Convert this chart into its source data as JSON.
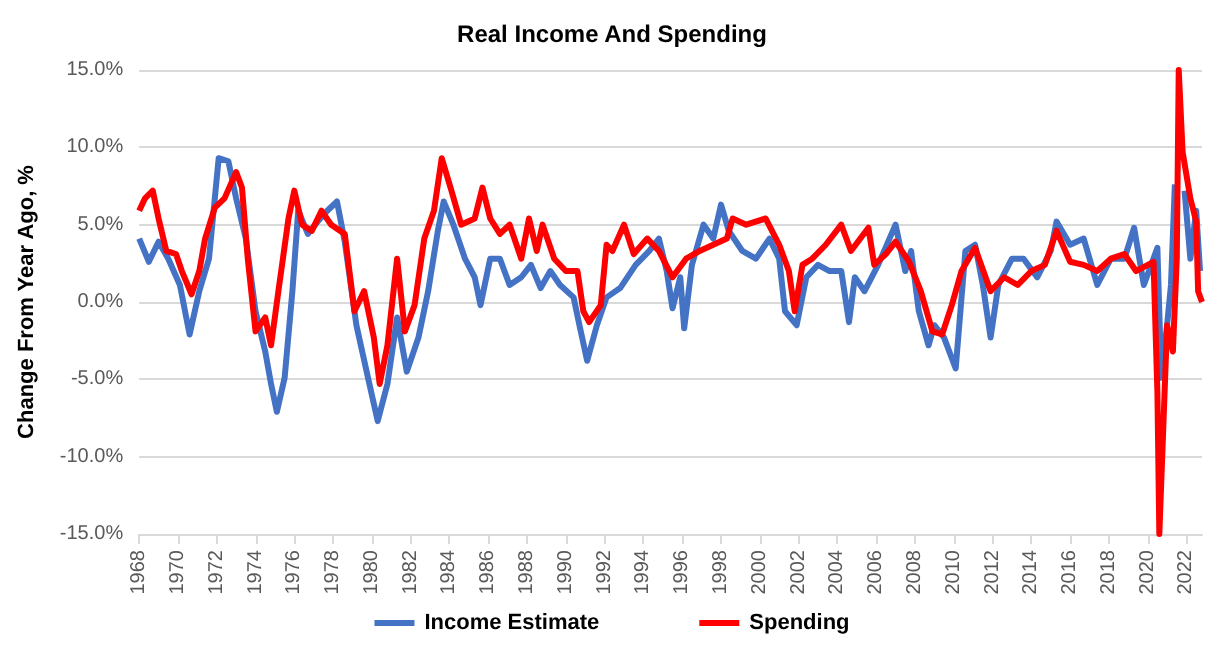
{
  "chart_data": {
    "type": "line",
    "title": "Real Income And Spending",
    "ylabel": "Change From Year Ago, %",
    "xlim": [
      1968,
      2022.8
    ],
    "xticks": [
      1968,
      1970,
      1972,
      1974,
      1976,
      1978,
      1980,
      1982,
      1984,
      1986,
      1988,
      1990,
      1992,
      1994,
      1996,
      1998,
      2000,
      2002,
      2004,
      2006,
      2008,
      2010,
      2012,
      2014,
      2016,
      2018,
      2020,
      2022
    ],
    "ylim": [
      -15,
      15
    ],
    "yticks": [
      {
        "value": -15,
        "label": "-15.0%"
      },
      {
        "value": -10,
        "label": "-10.0%"
      },
      {
        "value": -5,
        "label": "-5.0%"
      },
      {
        "value": 0,
        "label": "0.0%"
      },
      {
        "value": 5,
        "label": "5.0%"
      },
      {
        "value": 10,
        "label": "10.0%"
      },
      {
        "value": 15,
        "label": "15.0%"
      }
    ],
    "grid": "y",
    "legend": "bottom",
    "marker": "none",
    "line_style": "solid",
    "series": [
      {
        "name": "Income Estimate",
        "color": "#4472c4",
        "x": [
          1968.0,
          1968.5,
          1969.0,
          1969.5,
          1970.1,
          1970.6,
          1971.1,
          1971.6,
          1972.1,
          1972.6,
          1973.0,
          1973.5,
          1974.0,
          1974.5,
          1974.8,
          1975.1,
          1975.5,
          1975.9,
          1976.2,
          1976.7,
          1977.2,
          1977.7,
          1978.2,
          1978.6,
          1979.2,
          1979.8,
          1980.3,
          1980.8,
          1981.3,
          1981.8,
          1982.4,
          1982.9,
          1983.4,
          1983.7,
          1984.2,
          1984.8,
          1985.3,
          1985.6,
          1986.1,
          1986.6,
          1987.1,
          1987.7,
          1988.2,
          1988.7,
          1989.2,
          1989.7,
          1990.4,
          1990.7,
          1991.1,
          1991.6,
          1992.1,
          1992.8,
          1993.6,
          1994.3,
          1994.8,
          1995.2,
          1995.5,
          1995.9,
          1996.1,
          1996.5,
          1997.1,
          1997.6,
          1998.0,
          1998.4,
          1999.1,
          1999.8,
          2000.5,
          2001.0,
          2001.3,
          2001.9,
          2002.4,
          2003.0,
          2003.6,
          2004.2,
          2004.6,
          2004.9,
          2005.4,
          2006.1,
          2007.0,
          2007.5,
          2007.8,
          2008.2,
          2008.7,
          2009.0,
          2009.5,
          2010.1,
          2010.6,
          2011.1,
          2011.5,
          2011.9,
          2012.3,
          2013.0,
          2013.6,
          2014.3,
          2015.0,
          2015.3,
          2016.0,
          2016.7,
          2017.4,
          2018.1,
          2018.8,
          2019.3,
          2019.8,
          2020.5,
          2020.7,
          2021.0,
          2021.2,
          2021.4,
          2021.6,
          2021.9,
          2022.2,
          2022.5,
          2022.7
        ],
        "values": [
          4.1,
          2.6,
          3.9,
          2.8,
          1.1,
          -2.1,
          0.7,
          2.8,
          9.3,
          9.1,
          6.7,
          4.1,
          -0.6,
          -3.2,
          -5.3,
          -7.1,
          -4.9,
          0.7,
          5.9,
          4.4,
          5.2,
          5.9,
          6.5,
          3.9,
          -1.5,
          -4.9,
          -7.7,
          -5.3,
          -1.0,
          -4.5,
          -2.3,
          0.7,
          4.6,
          6.5,
          5.0,
          2.8,
          1.6,
          -0.2,
          2.8,
          2.8,
          1.1,
          1.6,
          2.4,
          0.9,
          2.0,
          1.1,
          0.3,
          -1.5,
          -3.8,
          -1.5,
          0.3,
          0.9,
          2.4,
          3.3,
          4.1,
          2.0,
          -0.4,
          1.6,
          -1.7,
          2.4,
          5.0,
          4.1,
          6.3,
          4.6,
          3.3,
          2.8,
          4.1,
          2.8,
          -0.6,
          -1.5,
          1.6,
          2.4,
          2.0,
          2.0,
          -1.3,
          1.6,
          0.7,
          2.4,
          5.0,
          2.0,
          3.3,
          -0.6,
          -2.8,
          -1.5,
          -2.3,
          -4.3,
          3.3,
          3.7,
          1.1,
          -2.3,
          1.1,
          2.8,
          2.8,
          1.6,
          3.3,
          5.2,
          3.7,
          4.1,
          1.1,
          2.8,
          2.8,
          4.8,
          1.1,
          3.5,
          -4.9,
          -1.5,
          1.1,
          7.6,
          null,
          7.2,
          2.8,
          5.9,
          2.0
        ]
      },
      {
        "name": "Spending",
        "color": "#ff0000",
        "x": [
          1968.0,
          1968.3,
          1968.7,
          1969.0,
          1969.4,
          1969.9,
          1970.2,
          1970.7,
          1971.1,
          1971.4,
          1971.9,
          1972.4,
          1973.0,
          1973.3,
          1973.6,
          1974.0,
          1974.5,
          1974.8,
          1975.2,
          1975.7,
          1976.0,
          1976.4,
          1976.9,
          1977.4,
          1977.9,
          1978.6,
          1979.1,
          1979.6,
          1980.1,
          1980.4,
          1980.8,
          1981.3,
          1981.7,
          1982.2,
          1982.7,
          1983.2,
          1983.6,
          1984.1,
          1984.6,
          1985.3,
          1985.7,
          1986.1,
          1986.6,
          1987.1,
          1987.7,
          1988.1,
          1988.5,
          1988.8,
          1989.4,
          1990.0,
          1990.6,
          1990.9,
          1991.2,
          1991.8,
          1992.1,
          1992.4,
          1993.0,
          1993.5,
          1994.2,
          1994.8,
          1995.5,
          1996.2,
          1996.9,
          1997.6,
          1998.3,
          1998.6,
          1999.3,
          2000.3,
          2001.0,
          2001.5,
          2001.8,
          2002.2,
          2002.7,
          2003.4,
          2004.2,
          2004.7,
          2005.6,
          2005.9,
          2006.5,
          2007.0,
          2007.7,
          2008.3,
          2008.9,
          2009.4,
          2009.9,
          2010.4,
          2011.1,
          2011.9,
          2012.6,
          2013.3,
          2014.0,
          2014.7,
          2015.3,
          2016.0,
          2016.7,
          2017.4,
          2018.1,
          2018.8,
          2019.4,
          2020.3,
          2020.5,
          2020.6,
          2021.0,
          2021.3,
          2021.5,
          2021.6,
          2021.8,
          2022.2,
          2022.5,
          2022.6,
          2022.8
        ],
        "values": [
          5.9,
          6.7,
          7.2,
          5.4,
          3.3,
          3.1,
          2.0,
          0.5,
          2.0,
          4.1,
          6.1,
          6.7,
          8.4,
          7.4,
          2.8,
          -1.9,
          -1.0,
          -2.8,
          0.9,
          5.4,
          7.2,
          5.0,
          4.6,
          5.9,
          5.0,
          4.4,
          -0.6,
          0.7,
          -2.3,
          -5.3,
          -2.8,
          2.8,
          -1.9,
          -0.2,
          4.1,
          5.9,
          9.3,
          7.2,
          5.0,
          5.4,
          7.4,
          5.4,
          4.4,
          5.0,
          2.8,
          5.4,
          3.3,
          5.0,
          2.8,
          2.0,
          2.0,
          -0.6,
          -1.3,
          -0.2,
          3.7,
          3.3,
          5.0,
          3.1,
          4.1,
          3.3,
          1.6,
          2.8,
          3.3,
          3.7,
          4.1,
          5.4,
          5.0,
          5.4,
          3.7,
          2.0,
          -0.6,
          2.4,
          2.8,
          3.7,
          5.0,
          3.3,
          4.8,
          2.4,
          3.1,
          3.9,
          2.6,
          0.7,
          -1.9,
          -2.1,
          -0.2,
          2.0,
          3.5,
          0.7,
          1.6,
          1.1,
          2.0,
          2.4,
          4.6,
          2.6,
          2.4,
          2.0,
          2.8,
          3.1,
          2.0,
          2.6,
          -5.8,
          -15,
          -1.5,
          -3.2,
          2.8,
          15,
          9.7,
          6.7,
          5.2,
          0.7,
          0.0
        ]
      }
    ]
  }
}
